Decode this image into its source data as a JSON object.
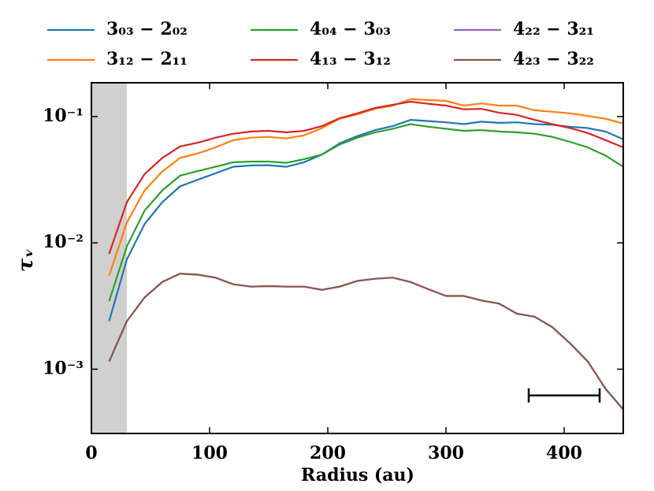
{
  "chart_data": {
    "type": "line",
    "x_label": "Radius (au)",
    "y_label": "τᵥ",
    "log_y": true,
    "xlim": [
      0,
      450
    ],
    "xticks": [
      0,
      100,
      200,
      300,
      400
    ],
    "ylim": [
      0.00031,
      0.185
    ],
    "yticks": [
      {
        "value": 0.1,
        "label": "10⁻¹"
      },
      {
        "value": 0.01,
        "label": "10⁻²"
      },
      {
        "value": 0.001,
        "label": "10⁻³"
      }
    ],
    "shaded_region": {
      "x": [
        0,
        30
      ],
      "color": "#d0d0d0"
    },
    "scale_bar": {
      "x": [
        370,
        430
      ],
      "y": 0.00062
    },
    "x": [
      15,
      30,
      45,
      60,
      75,
      90,
      105,
      120,
      135,
      150,
      165,
      180,
      195,
      210,
      225,
      240,
      255,
      270,
      285,
      300,
      315,
      330,
      345,
      360,
      375,
      390,
      405,
      420,
      435,
      450
    ],
    "series": [
      {
        "name": "3₀₃ − 2₀₂",
        "color": "#1f77b4",
        "values": [
          0.0024,
          0.0074,
          0.0141,
          0.021,
          0.028,
          0.0316,
          0.0355,
          0.04,
          0.041,
          0.0412,
          0.04,
          0.0435,
          0.05,
          0.0614,
          0.07,
          0.078,
          0.084,
          0.094,
          0.092,
          0.09,
          0.087,
          0.091,
          0.089,
          0.09,
          0.087,
          0.086,
          0.083,
          0.081,
          0.076,
          0.066
        ]
      },
      {
        "name": "3₁₂ − 2₁₁",
        "color": "#ff7f0e",
        "values": [
          0.0055,
          0.0145,
          0.026,
          0.0367,
          0.047,
          0.051,
          0.057,
          0.065,
          0.068,
          0.069,
          0.067,
          0.071,
          0.081,
          0.096,
          0.104,
          0.115,
          0.122,
          0.137,
          0.135,
          0.133,
          0.122,
          0.127,
          0.122,
          0.122,
          0.112,
          0.109,
          0.106,
          0.101,
          0.096,
          0.088
        ]
      },
      {
        "name": "4₀₄ − 3₀₃",
        "color": "#2ca02c",
        "values": [
          0.00345,
          0.0094,
          0.018,
          0.026,
          0.034,
          0.037,
          0.04,
          0.0434,
          0.044,
          0.044,
          0.043,
          0.046,
          0.05,
          0.06,
          0.068,
          0.075,
          0.08,
          0.087,
          0.083,
          0.08,
          0.077,
          0.078,
          0.076,
          0.075,
          0.073,
          0.069,
          0.063,
          0.057,
          0.049,
          0.04
        ]
      },
      {
        "name": "4₁₃ − 3₁₂",
        "color": "#d62728",
        "values": [
          0.0082,
          0.021,
          0.035,
          0.047,
          0.058,
          0.062,
          0.068,
          0.073,
          0.076,
          0.077,
          0.075,
          0.077,
          0.084,
          0.097,
          0.106,
          0.117,
          0.124,
          0.131,
          0.126,
          0.122,
          0.114,
          0.115,
          0.107,
          0.103,
          0.094,
          0.087,
          0.081,
          0.074,
          0.065,
          0.057
        ]
      },
      {
        "name": "4₂₂ − 3₂₁",
        "color": "#9467bd",
        "values": [
          0.00115,
          0.0024,
          0.0037,
          0.0049,
          0.0057,
          0.0056,
          0.0053,
          0.0047,
          0.0045,
          0.00455,
          0.0045,
          0.0045,
          0.00425,
          0.0045,
          0.005,
          0.0052,
          0.0053,
          0.0049,
          0.0043,
          0.0038,
          0.0038,
          0.0035,
          0.0033,
          0.00275,
          0.0026,
          0.00215,
          0.0016,
          0.00115,
          0.0007,
          0.00048
        ]
      },
      {
        "name": "4₂₃ − 3₂₂",
        "color": "#8c564b",
        "values": [
          0.00115,
          0.0024,
          0.0037,
          0.0049,
          0.0057,
          0.0056,
          0.0053,
          0.0047,
          0.0045,
          0.00455,
          0.0045,
          0.0045,
          0.00425,
          0.0045,
          0.005,
          0.0052,
          0.0053,
          0.0049,
          0.0043,
          0.0038,
          0.0038,
          0.0035,
          0.0033,
          0.00275,
          0.0026,
          0.00215,
          0.0016,
          0.00115,
          0.0007,
          0.00048
        ]
      }
    ]
  }
}
